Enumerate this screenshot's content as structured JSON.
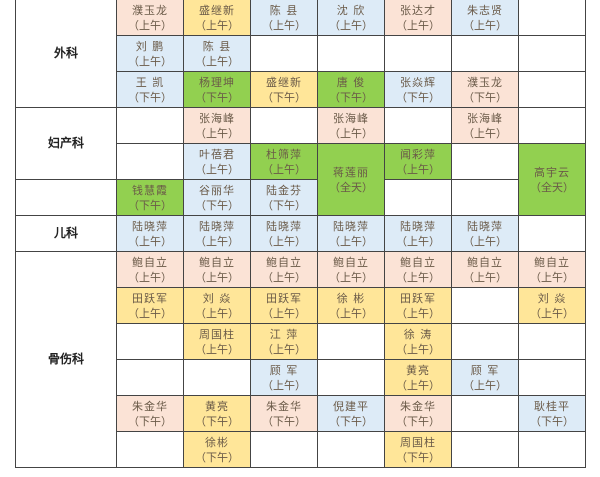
{
  "colors": {
    "peach": "#fbe3d6",
    "yellow": "#ffe699",
    "blue": "#ddebf7",
    "green": "#92d050",
    "none": "#ffffff"
  },
  "departments": [
    {
      "label": "外科",
      "rows": [
        [
          {
            "name": "濮玉龙",
            "time": "（上午）",
            "color": "peach"
          },
          {
            "name": "盛继新",
            "time": "（上午）",
            "color": "yellow"
          },
          {
            "name": "陈 县",
            "time": "（上午）",
            "color": "blue"
          },
          {
            "name": "沈 欣",
            "time": "（上午）",
            "color": "blue"
          },
          {
            "name": "张达才",
            "time": "（上午）",
            "color": "peach"
          },
          {
            "name": "朱志贤",
            "time": "（上午）",
            "color": "blue"
          },
          {}
        ],
        [
          {
            "name": "刘 鹏",
            "time": "（上午）",
            "color": "blue"
          },
          {
            "name": "陈 县",
            "time": "（上午）",
            "color": "blue"
          },
          {},
          {},
          {},
          {},
          {}
        ],
        [
          {
            "name": "王 凯",
            "time": "（下午）",
            "color": "blue"
          },
          {
            "name": "杨理坤",
            "time": "（下午）",
            "color": "green"
          },
          {
            "name": "盛继新",
            "time": "（下午）",
            "color": "yellow"
          },
          {
            "name": "唐 俊",
            "time": "（下午）",
            "color": "green"
          },
          {
            "name": "张焱辉",
            "time": "（下午）",
            "color": "blue"
          },
          {
            "name": "濮玉龙",
            "time": "（下午）",
            "color": "peach"
          },
          {}
        ]
      ]
    },
    {
      "label": "妇产科",
      "labelRows": 2,
      "rows": [
        [
          {},
          {
            "name": "张海峰",
            "time": "（上午）",
            "color": "peach"
          },
          {},
          {
            "name": "张海峰",
            "time": "（上午）",
            "color": "peach"
          },
          {},
          {
            "name": "张海峰",
            "time": "（上午）",
            "color": "peach"
          },
          {}
        ],
        [
          {},
          {
            "name": "叶蓓君",
            "time": "（上午）",
            "color": "blue"
          },
          {
            "name": "杜筛萍",
            "time": "（上午）",
            "color": "green"
          },
          {
            "name": "蒋莲丽",
            "time": "（全天）",
            "color": "green",
            "span": 2
          },
          {
            "name": "闻彩萍",
            "time": "（上午）",
            "color": "green"
          },
          {},
          {
            "name": "高宇云",
            "time": "（全天）",
            "color": "green",
            "span": 2
          }
        ],
        [
          {
            "name": "钱慧霞",
            "time": "（下午）",
            "color": "green"
          },
          {
            "name": "谷丽华",
            "time": "（下午）",
            "color": "blue"
          },
          {
            "name": "陆金芬",
            "time": "（下午）",
            "color": "blue"
          },
          null,
          {},
          {},
          null
        ]
      ]
    },
    {
      "label": "儿科",
      "rows": [
        [
          {
            "name": "陆晓萍",
            "time": "（上午）",
            "color": "blue"
          },
          {
            "name": "陆晓萍",
            "time": "（上午）",
            "color": "blue"
          },
          {
            "name": "陆晓萍",
            "time": "（上午）",
            "color": "blue"
          },
          {
            "name": "陆晓萍",
            "time": "（上午）",
            "color": "blue"
          },
          {
            "name": "陆晓萍",
            "time": "（上午）",
            "color": "blue"
          },
          {
            "name": "陆晓萍",
            "time": "（上午）",
            "color": "blue"
          },
          {}
        ]
      ]
    },
    {
      "label": "骨伤科",
      "rows": [
        [
          {
            "name": "鲍自立",
            "time": "（上午）",
            "color": "peach"
          },
          {
            "name": "鲍自立",
            "time": "（上午）",
            "color": "peach"
          },
          {
            "name": "鲍自立",
            "time": "（上午）",
            "color": "peach"
          },
          {
            "name": "鲍自立",
            "time": "（上午）",
            "color": "peach"
          },
          {
            "name": "鲍自立",
            "time": "（上午）",
            "color": "peach"
          },
          {
            "name": "鲍自立",
            "time": "（上午）",
            "color": "peach"
          },
          {
            "name": "鲍自立",
            "time": "（上午）",
            "color": "peach"
          }
        ],
        [
          {
            "name": "田跃军",
            "time": "（上午）",
            "color": "yellow"
          },
          {
            "name": "刘 焱",
            "time": "（上午）",
            "color": "yellow"
          },
          {
            "name": "田跃军",
            "time": "（上午）",
            "color": "yellow"
          },
          {
            "name": "徐 彬",
            "time": "（上午）",
            "color": "yellow"
          },
          {
            "name": "田跃军",
            "time": "（上午）",
            "color": "yellow"
          },
          {},
          {
            "name": "刘 焱",
            "time": "（上午）",
            "color": "yellow"
          }
        ],
        [
          {},
          {
            "name": "周国柱",
            "time": "（上午）",
            "color": "yellow"
          },
          {
            "name": "江 萍",
            "time": "（上午）",
            "color": "yellow"
          },
          {},
          {
            "name": "徐 涛",
            "time": "（上午）",
            "color": "yellow"
          },
          {},
          {}
        ],
        [
          {},
          {},
          {
            "name": "顾 军",
            "time": "（上午）",
            "color": "blue"
          },
          {},
          {
            "name": "黄亮",
            "time": "（上午）",
            "color": "yellow"
          },
          {
            "name": "顾 军",
            "time": "（上午）",
            "color": "blue"
          },
          {}
        ],
        [
          {
            "name": "朱金华",
            "time": "（下午）",
            "color": "peach"
          },
          {
            "name": "黄亮",
            "time": "（下午）",
            "color": "yellow"
          },
          {
            "name": "朱金华",
            "time": "（下午）",
            "color": "peach"
          },
          {
            "name": "倪建平",
            "time": "（下午）",
            "color": "blue"
          },
          {
            "name": "朱金华",
            "time": "（下午）",
            "color": "peach"
          },
          {},
          {
            "name": "耿桂平",
            "time": "（下午）",
            "color": "blue"
          }
        ],
        [
          {},
          {
            "name": "徐彬",
            "time": "（下午）",
            "color": "yellow"
          },
          {},
          {},
          {
            "name": "周国柱",
            "time": "（下午）",
            "color": "yellow"
          },
          {},
          {}
        ]
      ]
    }
  ]
}
